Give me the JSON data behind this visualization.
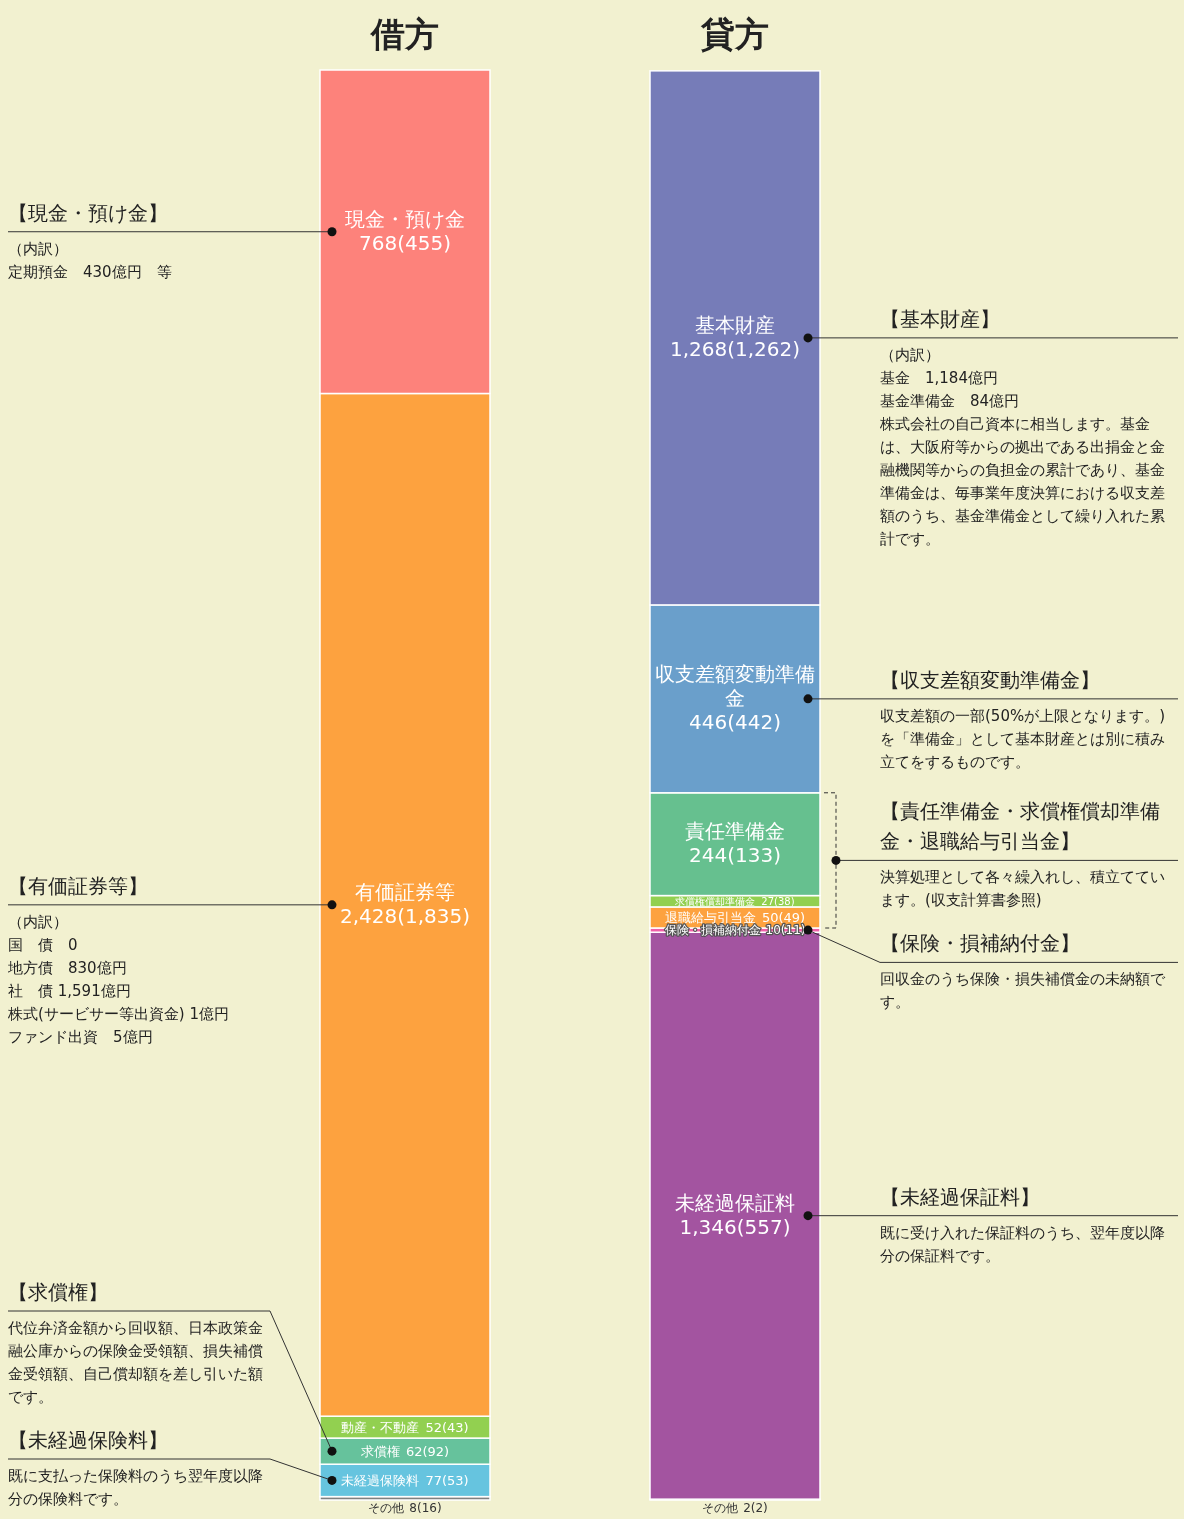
{
  "chart_data": {
    "type": "bar",
    "stacked": true,
    "categories": [
      "借方",
      "貸方"
    ],
    "series": [
      {
        "name": "その他",
        "color": "#808080",
        "values": [
          8,
          null
        ],
        "value_labels": [
          "8(16)",
          null
        ]
      },
      {
        "name": "未経過保険料",
        "color": "#66c4df",
        "values": [
          77,
          null
        ],
        "value_labels": [
          "77(53)",
          null
        ]
      },
      {
        "name": "求償権",
        "color": "#66c29c",
        "values": [
          62,
          null
        ],
        "value_labels": [
          "62(92)",
          null
        ]
      },
      {
        "name": "動産・不動産",
        "color": "#92d050",
        "values": [
          52,
          null
        ],
        "value_labels": [
          "52(43)",
          null
        ]
      },
      {
        "name": "有価証券等",
        "color": "#fda23f",
        "values": [
          2428,
          null
        ],
        "value_labels": [
          "2,428(1,835)",
          null
        ]
      },
      {
        "name": "現金・預け金",
        "color": "#fd827b",
        "values": [
          768,
          null
        ],
        "value_labels": [
          "768(455)",
          null
        ]
      },
      {
        "name": "その他",
        "color": "#808080",
        "values": [
          null,
          2
        ],
        "value_labels": [
          null,
          "2(2)"
        ]
      },
      {
        "name": "未経過保証料",
        "color": "#a354a0",
        "values": [
          null,
          1346
        ],
        "value_labels": [
          null,
          "1,346(557)"
        ]
      },
      {
        "name": "保険・損補納付金",
        "color": "#f060a8",
        "values": [
          null,
          10
        ],
        "value_labels": [
          null,
          "10(11)"
        ]
      },
      {
        "name": "退職給与引当金",
        "color": "#fda23f",
        "values": [
          null,
          50
        ],
        "value_labels": [
          null,
          "50(49)"
        ]
      },
      {
        "name": "求償権償却準備金",
        "color": "#92d050",
        "values": [
          null,
          27
        ],
        "value_labels": [
          null,
          "27(38)"
        ]
      },
      {
        "name": "責任準備金",
        "color": "#66c08f",
        "values": [
          null,
          244
        ],
        "value_labels": [
          null,
          "244(133)"
        ]
      },
      {
        "name": "収支差額変動準備金",
        "color": "#6a9fcb",
        "values": [
          null,
          446
        ],
        "value_labels": [
          null,
          "446(442)"
        ]
      },
      {
        "name": "基本財産",
        "color": "#767cb8",
        "values": [
          null,
          1268
        ],
        "value_labels": [
          null,
          "1,268(1,262)"
        ]
      }
    ],
    "annotations": [
      "【現金・預け金】",
      "（内訳）",
      "定期預金　430億円　等",
      "【有価証券等】",
      "（内訳）",
      "国　債　0",
      "地方債　830億円",
      "社　債 1,591億円",
      "株式(サービサー等出資金) 1億円",
      "ファンド出資　5億円",
      "【求償権】",
      "代位弁済金額から回収額、日本政策金融公庫からの保険金受領額、損失補償金受領額、自己償却額を差し引いた額です。",
      "【未経過保険料】",
      "既に支払った保険料のうち翌年度以降分の保険料です。",
      "【基本財産】",
      "（内訳）",
      "基金　1,184億円",
      "基金準備金　84億円",
      "株式会社の自己資本に相当します。基金は、大阪府等からの拠出である出捐金と金融機関等からの負担金の累計であり、基金準備金は、毎事業年度決算における収支差額のうち、基金準備金として繰り入れた累計です。",
      "【収支差額変動準備金】",
      "収支差額の一部(50%が上限となります。)を「準備金」として基本財産とは別に積み立てをするものです。",
      "【責任準備金・求償権償却準備金・退職給与引当金】",
      "決算処理として各々繰入れし、積立てています。(収支計算書参照)",
      "【保険・損補納付金】",
      "回収金のうち保険・損失補償金の未納額です。",
      "【未経過保証料】",
      "既に受け入れた保証料のうち、翌年度以降分の保証料です。"
    ]
  }
}
